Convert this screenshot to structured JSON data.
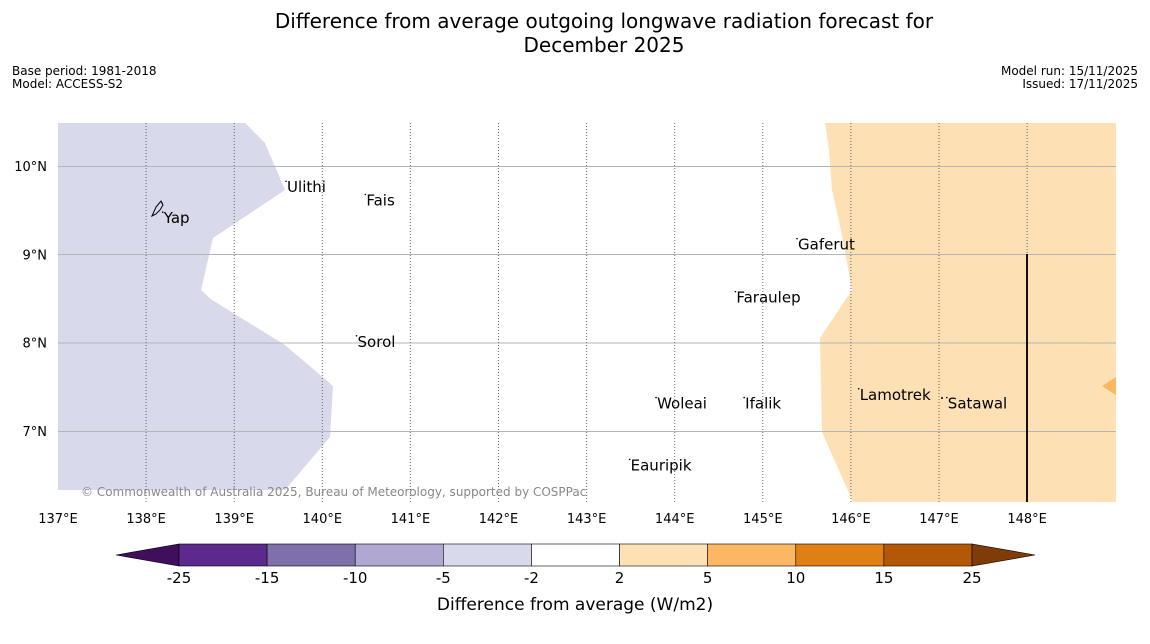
{
  "title_line1": "Difference from average outgoing longwave radiation forecast for",
  "title_line2": "December 2025",
  "base_period": "Base period: 1981-2018",
  "model": "Model: ACCESS-S2",
  "model_run": "Model run: 15/11/2025",
  "issued": "Issued: 17/11/2025",
  "copyright": "© Commonwealth of Australia 2025, Bureau of Meteorology, supported by COSPPac",
  "lon_ticks": [
    "137°E",
    "138°E",
    "139°E",
    "140°E",
    "141°E",
    "142°E",
    "143°E",
    "144°E",
    "145°E",
    "146°E",
    "147°E",
    "148°E"
  ],
  "lat_ticks": [
    "10°N",
    "9°N",
    "8°N",
    "7°N"
  ],
  "places": [
    {
      "name": "Yap",
      "lon": 138.2,
      "lat": 9.5
    },
    {
      "name": "Ulithi",
      "lon": 139.6,
      "lat": 9.85
    },
    {
      "name": "Fais",
      "lon": 140.5,
      "lat": 9.7
    },
    {
      "name": "Gaferut",
      "lon": 145.4,
      "lat": 9.2
    },
    {
      "name": "Faraulep",
      "lon": 144.7,
      "lat": 8.6
    },
    {
      "name": "Sorol",
      "lon": 140.4,
      "lat": 8.1
    },
    {
      "name": "Lamotrek",
      "lon": 146.1,
      "lat": 7.5
    },
    {
      "name": "Woleai",
      "lon": 143.8,
      "lat": 7.4
    },
    {
      "name": "Ifalik",
      "lon": 144.8,
      "lat": 7.4
    },
    {
      "name": "Satawal",
      "lon": 147.1,
      "lat": 7.4
    },
    {
      "name": "Eauripik",
      "lon": 143.5,
      "lat": 6.7
    }
  ],
  "colorbar": {
    "label": "Difference from average (W/m2)",
    "ticks": [
      "-25",
      "-15",
      "-10",
      "-5",
      "-2",
      "2",
      "5",
      "10",
      "15",
      "25"
    ],
    "colors": [
      "#3f0f5e",
      "#5b2a8c",
      "#7f6faa",
      "#b0a8d2",
      "#d8d9eb",
      "#ffffff",
      "#fee0b5",
      "#fcb762",
      "#e08014",
      "#b35807",
      "#7f3b08"
    ]
  }
}
